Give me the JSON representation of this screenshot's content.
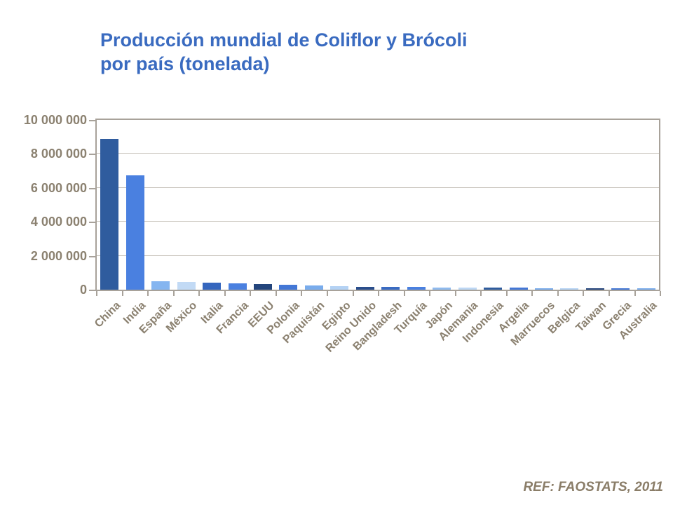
{
  "title": {
    "line1": "Producción mundial de Coliflor y Brócoli",
    "line2": "por país (tonelada)"
  },
  "footer": {
    "text": "REF: FAOSTATS, 2011"
  },
  "colors": {
    "title_text": "#3A6BC0",
    "axis_text": "#8B8170",
    "footer_text": "#8A7D68",
    "gridline": "#C9C4BC",
    "plot_border": "#A8A29A",
    "background": "#FFFFFF"
  },
  "chart_data": {
    "type": "bar",
    "title": "Producción mundial de Coliflor y Brócoli por país (tonelada)",
    "xlabel": "",
    "ylabel": "",
    "unit": "tonelada",
    "ylim": [
      0,
      10000000
    ],
    "yticks": [
      0,
      2000000,
      4000000,
      6000000,
      8000000,
      10000000
    ],
    "ytick_labels": [
      "0",
      "2 000 000",
      "4 000 000",
      "6 000 000",
      "8 000 000",
      "10 000 000"
    ],
    "grid": "horizontal",
    "legend_position": "none",
    "categories": [
      "China",
      "India",
      "España",
      "México",
      "Italia",
      "Francia",
      "EEUU",
      "Polonia",
      "Paquistán",
      "Egipto",
      "Reino Unido",
      "Bangladesh",
      "Turquía",
      "Japón",
      "Alemania",
      "Indonesia",
      "Argelia",
      "Marruecos",
      "Belgica",
      "Taiwan",
      "Grecia",
      "Australia"
    ],
    "values": [
      8900000,
      6750000,
      510000,
      440000,
      405000,
      360000,
      320000,
      290000,
      230000,
      195000,
      185000,
      175000,
      160000,
      140000,
      125000,
      115000,
      110000,
      100000,
      90000,
      85000,
      80000,
      55000
    ],
    "bar_colors": [
      "#2F5C9E",
      "#4A80E0",
      "#85B5F0",
      "#C2DAF5",
      "#3566BE",
      "#4A80E0",
      "#24457C",
      "#4377D6",
      "#79ACEC",
      "#B4D2F4",
      "#2A4E8C",
      "#3A6BC2",
      "#4A80E0",
      "#8FBAEE",
      "#BDD7F4",
      "#2F5C9E",
      "#4377D6",
      "#79ACEC",
      "#B4D2F4",
      "#24457C",
      "#4377D6",
      "#79ACEC"
    ]
  }
}
